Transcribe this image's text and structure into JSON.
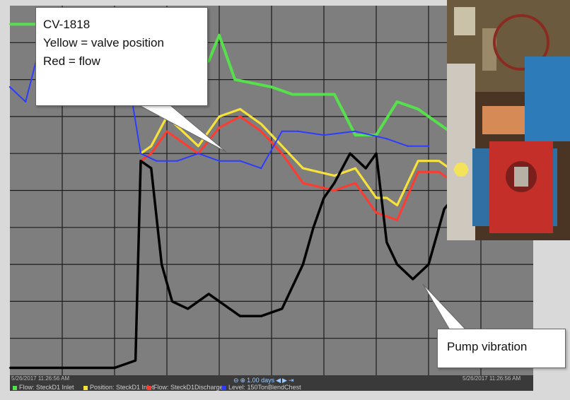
{
  "chart_data": {
    "type": "line",
    "title": "",
    "xlabel": "",
    "ylabel": "",
    "x_range": [
      0,
      100
    ],
    "y_range": [
      0,
      100
    ],
    "grid": true,
    "legend_position": "bottom",
    "series": [
      {
        "name": "Flow: SteckD1 Inlet",
        "color": "#56e04c",
        "values": [
          [
            0,
            95
          ],
          [
            25,
            95
          ],
          [
            28,
            85
          ],
          [
            38,
            85
          ],
          [
            40,
            92
          ],
          [
            43,
            80
          ],
          [
            50,
            78
          ],
          [
            54,
            76
          ],
          [
            62,
            76
          ],
          [
            66,
            65
          ],
          [
            70,
            65
          ],
          [
            74,
            74
          ],
          [
            78,
            72
          ],
          [
            84,
            66
          ],
          [
            86,
            80
          ],
          [
            88,
            60
          ]
        ]
      },
      {
        "name": "Position: SteckD1 Inlet",
        "color": "#f7e23b",
        "values": [
          [
            25,
            60
          ],
          [
            27,
            62
          ],
          [
            30,
            70
          ],
          [
            33,
            66
          ],
          [
            36,
            62
          ],
          [
            40,
            70
          ],
          [
            44,
            72
          ],
          [
            48,
            68
          ],
          [
            52,
            62
          ],
          [
            56,
            56
          ],
          [
            62,
            54
          ],
          [
            66,
            56
          ],
          [
            70,
            48
          ],
          [
            72,
            48
          ],
          [
            74,
            46
          ],
          [
            78,
            58
          ],
          [
            82,
            58
          ],
          [
            86,
            54
          ],
          [
            88,
            50
          ]
        ]
      },
      {
        "name": "Flow: SteckD1Discharge",
        "color": "#ff3b30",
        "values": [
          [
            25,
            58
          ],
          [
            27,
            60
          ],
          [
            30,
            66
          ],
          [
            33,
            63
          ],
          [
            36,
            60
          ],
          [
            40,
            67
          ],
          [
            44,
            70
          ],
          [
            48,
            66
          ],
          [
            52,
            60
          ],
          [
            56,
            52
          ],
          [
            62,
            50
          ],
          [
            66,
            52
          ],
          [
            70,
            44
          ],
          [
            74,
            42
          ],
          [
            78,
            55
          ],
          [
            82,
            55
          ],
          [
            86,
            51
          ],
          [
            88,
            46
          ]
        ]
      },
      {
        "name": "Level: 150TonBlendChest",
        "color": "#2f3bff",
        "values": [
          [
            0,
            78
          ],
          [
            3,
            74
          ],
          [
            5,
            85
          ],
          [
            8,
            88
          ],
          [
            12,
            80
          ],
          [
            18,
            80
          ],
          [
            22,
            86
          ],
          [
            25,
            60
          ],
          [
            28,
            58
          ],
          [
            32,
            58
          ],
          [
            36,
            60
          ],
          [
            40,
            58
          ],
          [
            44,
            58
          ],
          [
            48,
            56
          ],
          [
            52,
            66
          ],
          [
            55,
            66
          ],
          [
            60,
            65
          ],
          [
            66,
            66
          ],
          [
            72,
            64
          ],
          [
            76,
            62
          ],
          [
            80,
            62
          ]
        ]
      },
      {
        "name": "Pump vibration",
        "color": "#000000",
        "values": [
          [
            0,
            2
          ],
          [
            8,
            2
          ],
          [
            12,
            2
          ],
          [
            16,
            2
          ],
          [
            20,
            2
          ],
          [
            24,
            4
          ],
          [
            25,
            58
          ],
          [
            27,
            56
          ],
          [
            29,
            30
          ],
          [
            31,
            20
          ],
          [
            34,
            18
          ],
          [
            38,
            22
          ],
          [
            40,
            20
          ],
          [
            44,
            16
          ],
          [
            48,
            16
          ],
          [
            52,
            18
          ],
          [
            56,
            30
          ],
          [
            58,
            40
          ],
          [
            60,
            48
          ],
          [
            62,
            52
          ],
          [
            65,
            60
          ],
          [
            68,
            56
          ],
          [
            70,
            60
          ],
          [
            72,
            36
          ],
          [
            74,
            30
          ],
          [
            77,
            26
          ],
          [
            80,
            30
          ],
          [
            83,
            45
          ],
          [
            86,
            50
          ],
          [
            90,
            46
          ]
        ]
      }
    ],
    "annotations": [
      "CV-1818",
      "Yellow = valve position",
      "Red = flow",
      "Pump vibration"
    ]
  },
  "callouts": {
    "main": {
      "line1": "CV-1818",
      "line2": "Yellow = valve position",
      "line3": "Red = flow"
    },
    "vibration": {
      "label": "Pump vibration"
    }
  },
  "legend": {
    "items": [
      {
        "label": "Flow: SteckD1 Inlet",
        "color": "#56e04c"
      },
      {
        "label": "Position: SteckD1 Inlet",
        "color": "#f7e23b"
      },
      {
        "label": "Flow: SteckD1Discharge",
        "color": "#ff3b30"
      },
      {
        "label": "Level: 150TonBlendChest",
        "color": "#2f3bff"
      }
    ]
  },
  "time": {
    "start": "5/26/2017 11:26:56 AM",
    "end": "5/26/2017 11:26:56 AM",
    "span": "1.00 days"
  },
  "photo": {
    "icon": "pump-photo"
  },
  "colors": {
    "plot_bg": "#7e7e7e",
    "grid": "#1c1c1c",
    "frame": "#d9d9d9"
  }
}
